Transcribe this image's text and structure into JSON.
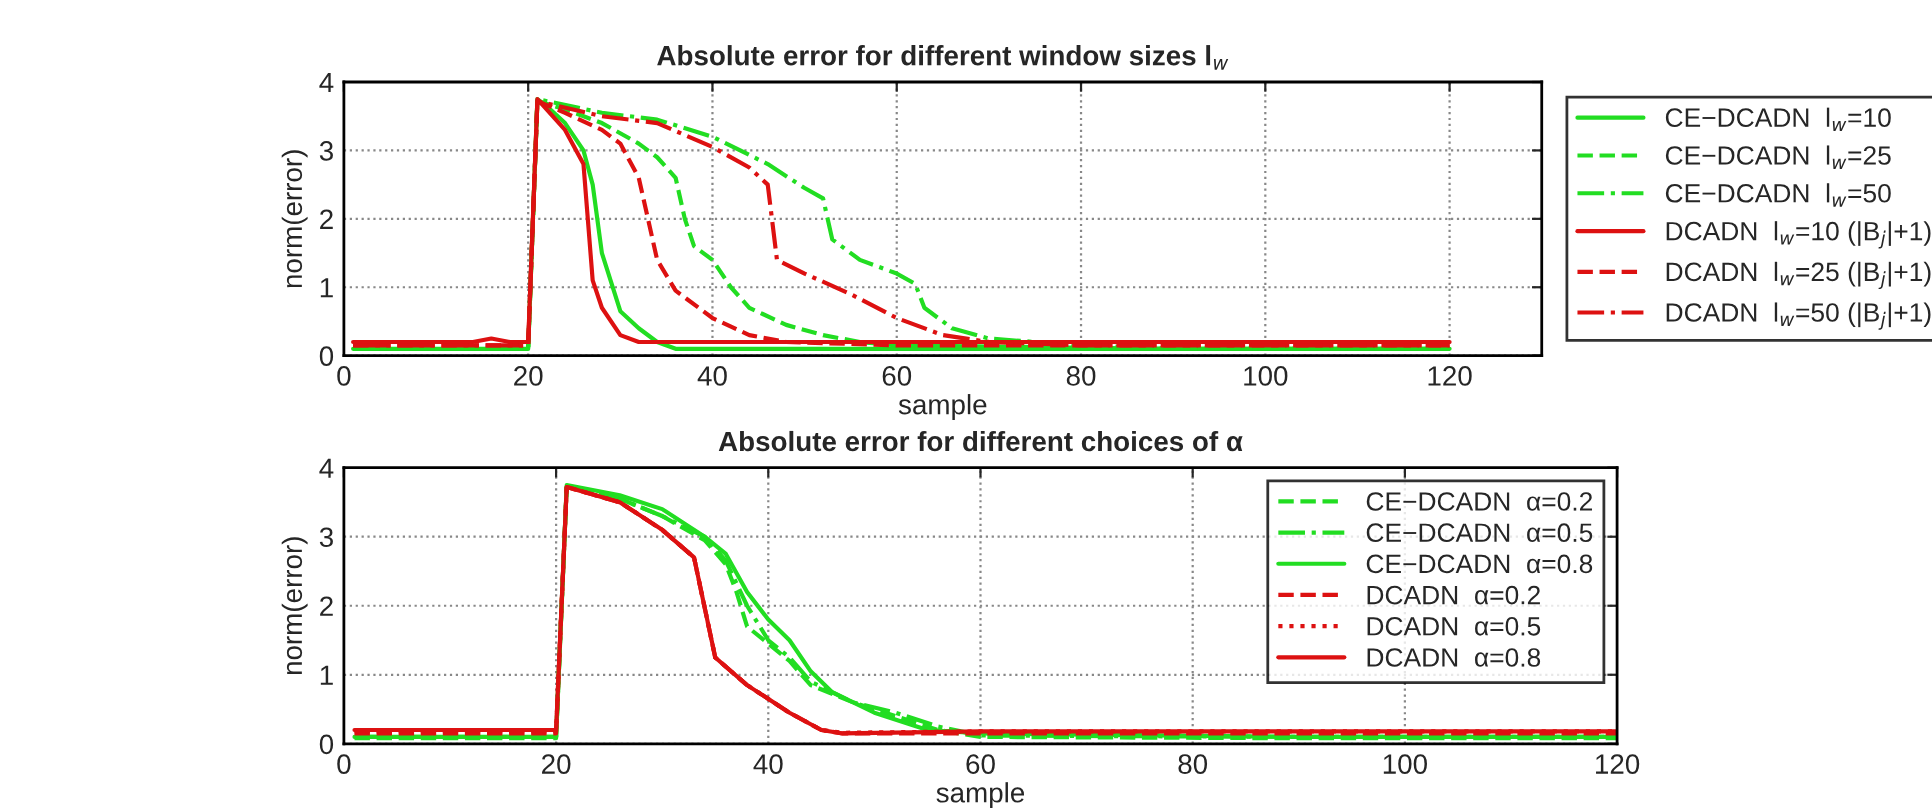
{
  "chart_data": [
    {
      "type": "line",
      "title": "Absolute error for different window sizes l$_{w}$",
      "xlabel": "sample",
      "ylabel": "norm(error)",
      "xlim": [
        0,
        130
      ],
      "ylim": [
        0,
        4
      ],
      "xticks": [
        0,
        20,
        40,
        60,
        80,
        100,
        120
      ],
      "yticks": [
        0,
        1,
        2,
        3,
        4
      ],
      "grid": true,
      "legend": "right",
      "series": [
        {
          "name": "CE−DCADN  l$_{w}$=10",
          "color": "#22dd22",
          "line_style": "solid",
          "x": [
            1,
            10,
            20,
            21,
            22,
            24,
            26,
            27,
            28,
            30,
            32,
            34,
            36,
            60,
            90,
            120
          ],
          "values": [
            0.1,
            0.1,
            0.1,
            3.75,
            3.65,
            3.4,
            3.0,
            2.5,
            1.5,
            0.65,
            0.4,
            0.2,
            0.1,
            0.1,
            0.1,
            0.1
          ]
        },
        {
          "name": "CE−DCADN  l$_{w}$=25",
          "color": "#22dd22",
          "line_style": "dashed",
          "x": [
            1,
            10,
            20,
            21,
            24,
            28,
            32,
            34,
            36,
            37,
            38,
            40,
            42,
            44,
            48,
            52,
            56,
            60,
            90,
            120
          ],
          "values": [
            0.1,
            0.1,
            0.1,
            3.72,
            3.6,
            3.4,
            3.1,
            2.9,
            2.6,
            2.0,
            1.6,
            1.4,
            1.0,
            0.7,
            0.45,
            0.3,
            0.2,
            0.15,
            0.1,
            0.1
          ]
        },
        {
          "name": "CE−DCADN  l$_{w}$=50",
          "color": "#22dd22",
          "line_style": "dashdot",
          "x": [
            1,
            10,
            20,
            21,
            28,
            34,
            40,
            46,
            50,
            52,
            53,
            56,
            60,
            62,
            63,
            66,
            70,
            75,
            80,
            90,
            120
          ],
          "values": [
            0.1,
            0.1,
            0.1,
            3.75,
            3.55,
            3.45,
            3.2,
            2.8,
            2.45,
            2.3,
            1.7,
            1.4,
            1.2,
            1.05,
            0.7,
            0.4,
            0.25,
            0.2,
            0.15,
            0.1,
            0.1
          ]
        },
        {
          "name": "DCADN  l$_{w}$=10 (|B$_{j}$|+1)",
          "color": "#dd1111",
          "line_style": "solid",
          "x": [
            1,
            10,
            14,
            16,
            18,
            20,
            21,
            22,
            24,
            26,
            27,
            28,
            30,
            32,
            60,
            90,
            120
          ],
          "values": [
            0.2,
            0.2,
            0.2,
            0.25,
            0.2,
            0.2,
            3.75,
            3.6,
            3.3,
            2.8,
            1.1,
            0.7,
            0.3,
            0.2,
            0.2,
            0.2,
            0.2
          ]
        },
        {
          "name": "DCADN  l$_{w}$=25 (|B$_{j}$|+1)",
          "color": "#dd1111",
          "line_style": "dashed",
          "x": [
            1,
            10,
            20,
            21,
            24,
            28,
            30,
            32,
            33,
            34,
            36,
            40,
            44,
            48,
            60,
            90,
            120
          ],
          "values": [
            0.15,
            0.15,
            0.15,
            3.72,
            3.55,
            3.3,
            3.1,
            2.6,
            2.0,
            1.4,
            0.95,
            0.55,
            0.3,
            0.2,
            0.15,
            0.15,
            0.15
          ]
        },
        {
          "name": "DCADN  l$_{w}$=50 (|B$_{j}$|+1)",
          "color": "#dd1111",
          "line_style": "dashdot",
          "x": [
            1,
            10,
            20,
            21,
            28,
            34,
            40,
            44,
            46,
            47,
            50,
            55,
            60,
            65,
            70,
            80,
            90,
            120
          ],
          "values": [
            0.15,
            0.15,
            0.15,
            3.72,
            3.5,
            3.4,
            3.05,
            2.75,
            2.5,
            1.4,
            1.2,
            0.9,
            0.55,
            0.3,
            0.2,
            0.15,
            0.15,
            0.15
          ]
        }
      ]
    },
    {
      "type": "line",
      "title": "Absolute error for different choices of α",
      "xlabel": "sample",
      "ylabel": "norm(error)",
      "xlim": [
        0,
        120
      ],
      "ylim": [
        0,
        4
      ],
      "xticks": [
        0,
        20,
        40,
        60,
        80,
        100,
        120
      ],
      "yticks": [
        0,
        1,
        2,
        3,
        4
      ],
      "grid": true,
      "legend": "top right",
      "series": [
        {
          "name": "CE−DCADN  α=0.2",
          "color": "#22dd22",
          "line_style": "dashed",
          "x": [
            1,
            10,
            20,
            21,
            26,
            30,
            34,
            36,
            37,
            38,
            40,
            42,
            44,
            48,
            52,
            56,
            60,
            90,
            120
          ],
          "values": [
            0.08,
            0.08,
            0.08,
            3.72,
            3.55,
            3.3,
            2.95,
            2.6,
            2.2,
            1.7,
            1.45,
            1.2,
            0.85,
            0.6,
            0.4,
            0.2,
            0.1,
            0.08,
            0.08
          ]
        },
        {
          "name": "CE−DCADN  α=0.5",
          "color": "#22dd22",
          "line_style": "dashdot",
          "x": [
            1,
            10,
            20,
            21,
            26,
            30,
            34,
            36,
            38,
            40,
            42,
            44,
            48,
            52,
            56,
            60,
            90,
            120
          ],
          "values": [
            0.1,
            0.1,
            0.1,
            3.72,
            3.55,
            3.3,
            3.0,
            2.65,
            2.0,
            1.5,
            1.25,
            0.9,
            0.6,
            0.45,
            0.25,
            0.12,
            0.1,
            0.1
          ]
        },
        {
          "name": "CE−DCADN  α=0.8",
          "color": "#22dd22",
          "line_style": "solid",
          "x": [
            1,
            10,
            20,
            21,
            26,
            30,
            34,
            36,
            38,
            40,
            42,
            44,
            46,
            50,
            55,
            60,
            90,
            120
          ],
          "values": [
            0.1,
            0.1,
            0.1,
            3.75,
            3.6,
            3.4,
            3.0,
            2.75,
            2.2,
            1.8,
            1.5,
            1.05,
            0.75,
            0.45,
            0.2,
            0.15,
            0.1,
            0.1
          ]
        },
        {
          "name": "DCADN  α=0.2",
          "color": "#dd1111",
          "line_style": "dashed",
          "x": [
            1,
            10,
            20,
            21,
            26,
            30,
            33,
            35,
            38,
            42,
            45,
            47,
            60,
            90,
            120
          ],
          "values": [
            0.15,
            0.15,
            0.15,
            3.72,
            3.5,
            3.1,
            2.7,
            1.25,
            0.85,
            0.45,
            0.2,
            0.15,
            0.15,
            0.15,
            0.15
          ]
        },
        {
          "name": "DCADN  α=0.5",
          "color": "#dd1111",
          "line_style": "dotted",
          "x": [
            1,
            10,
            20,
            21,
            26,
            30,
            33,
            35,
            38,
            42,
            45,
            47,
            60,
            90,
            120
          ],
          "values": [
            0.18,
            0.18,
            0.18,
            3.72,
            3.5,
            3.1,
            2.7,
            1.25,
            0.85,
            0.45,
            0.2,
            0.16,
            0.18,
            0.18,
            0.18
          ]
        },
        {
          "name": "DCADN  α=0.8",
          "color": "#dd1111",
          "line_style": "solid",
          "x": [
            1,
            10,
            20,
            21,
            26,
            30,
            33,
            35,
            38,
            42,
            45,
            47,
            60,
            90,
            120
          ],
          "values": [
            0.2,
            0.2,
            0.2,
            3.72,
            3.5,
            3.1,
            2.7,
            1.25,
            0.85,
            0.45,
            0.2,
            0.15,
            0.18,
            0.18,
            0.18
          ]
        }
      ]
    }
  ]
}
